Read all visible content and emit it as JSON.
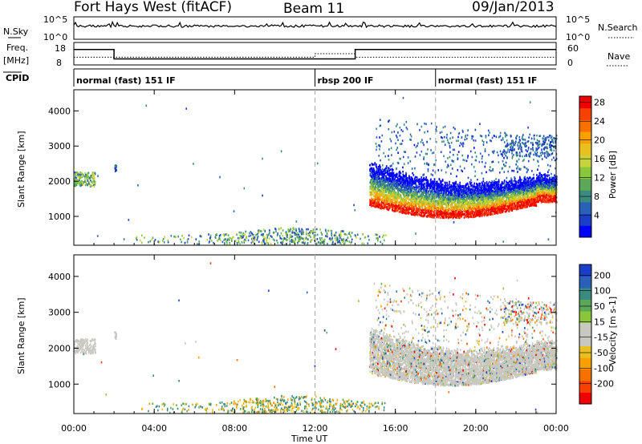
{
  "header": {
    "radar_title": "Fort Hays West (fitACF)",
    "beam": "Beam 11",
    "date": "09/Jan/2013"
  },
  "noise_panel": {
    "left_label": "N.Sky",
    "right_label": "N.Search",
    "left_ticks": [
      "10^5",
      "10^0"
    ],
    "right_ticks": [
      "10^5",
      "10^0"
    ]
  },
  "freq_panel": {
    "left_label_line1": "Freq.",
    "left_label_line2": "[MHz]",
    "right_label": "Nave",
    "left_ticks": [
      "18",
      "8"
    ],
    "right_ticks": [
      "60",
      "0"
    ],
    "freq_steps": [
      {
        "start": 0,
        "end": 2,
        "value": 15
      },
      {
        "start": 2,
        "end": 12,
        "value": 10.5
      },
      {
        "start": 12,
        "end": 14,
        "value": 10.5
      },
      {
        "start": 14,
        "end": 24,
        "value": 15
      }
    ],
    "nave_steps": [
      {
        "start": 0,
        "end": 12,
        "value": 20
      },
      {
        "start": 12,
        "end": 14,
        "value": 30
      },
      {
        "start": 14,
        "end": 24,
        "value": 20
      }
    ]
  },
  "cpid_panel": {
    "label": "CPID",
    "segments": [
      {
        "start": 0,
        "end": 12,
        "text": "normal (fast) 151 IF"
      },
      {
        "start": 12,
        "end": 18,
        "text": "rbsp 200 IF"
      },
      {
        "start": 18,
        "end": 24,
        "text": "normal (fast) 151 IF"
      }
    ]
  },
  "chart_data": [
    {
      "type": "heatmap",
      "name": "power",
      "ylabel": "Slant Range [km]",
      "xlabel": "Time UT",
      "xlim": [
        0,
        24
      ],
      "ylim": [
        180,
        4600
      ],
      "x_tick_labels": [
        "00:00",
        "04:00",
        "08:00",
        "12:00",
        "16:00",
        "20:00",
        "00:00"
      ],
      "y_ticks": [
        1000,
        2000,
        3000,
        4000
      ],
      "colorbar": {
        "label": "Power [dB]",
        "ticks": [
          "4",
          "8",
          "12",
          "16",
          "20",
          "24",
          "28"
        ],
        "range": [
          0,
          30
        ],
        "colors": [
          "#0000ff",
          "#1a3ec8",
          "#2a60b8",
          "#3a8a80",
          "#5aa858",
          "#8ac63a",
          "#c8d23a",
          "#e8c020",
          "#f8a000",
          "#f87000",
          "#f84000",
          "#f00000"
        ]
      }
    },
    {
      "type": "heatmap",
      "name": "velocity",
      "ylabel": "Slant Range [km]",
      "xlabel": "Time UT",
      "xlim": [
        0,
        24
      ],
      "ylim": [
        180,
        4600
      ],
      "x_tick_labels": [
        "00:00",
        "04:00",
        "08:00",
        "12:00",
        "16:00",
        "20:00",
        "00:00"
      ],
      "y_ticks": [
        1000,
        2000,
        3000,
        4000
      ],
      "colorbar": {
        "label": "Velocity [m s-1]",
        "ticks": [
          "200",
          "100",
          "50",
          "15",
          "-15",
          "-50",
          "-100",
          "-200"
        ],
        "colors": [
          "#1a3ec8",
          "#2a60b8",
          "#3a8a80",
          "#5aa858",
          "#8ac63a",
          "#c8c8c0",
          "#c8c8c0",
          "#e8c020",
          "#f8a000",
          "#f87000",
          "#f84000",
          "#f00000"
        ]
      }
    }
  ],
  "x_axis_title": "Time UT"
}
